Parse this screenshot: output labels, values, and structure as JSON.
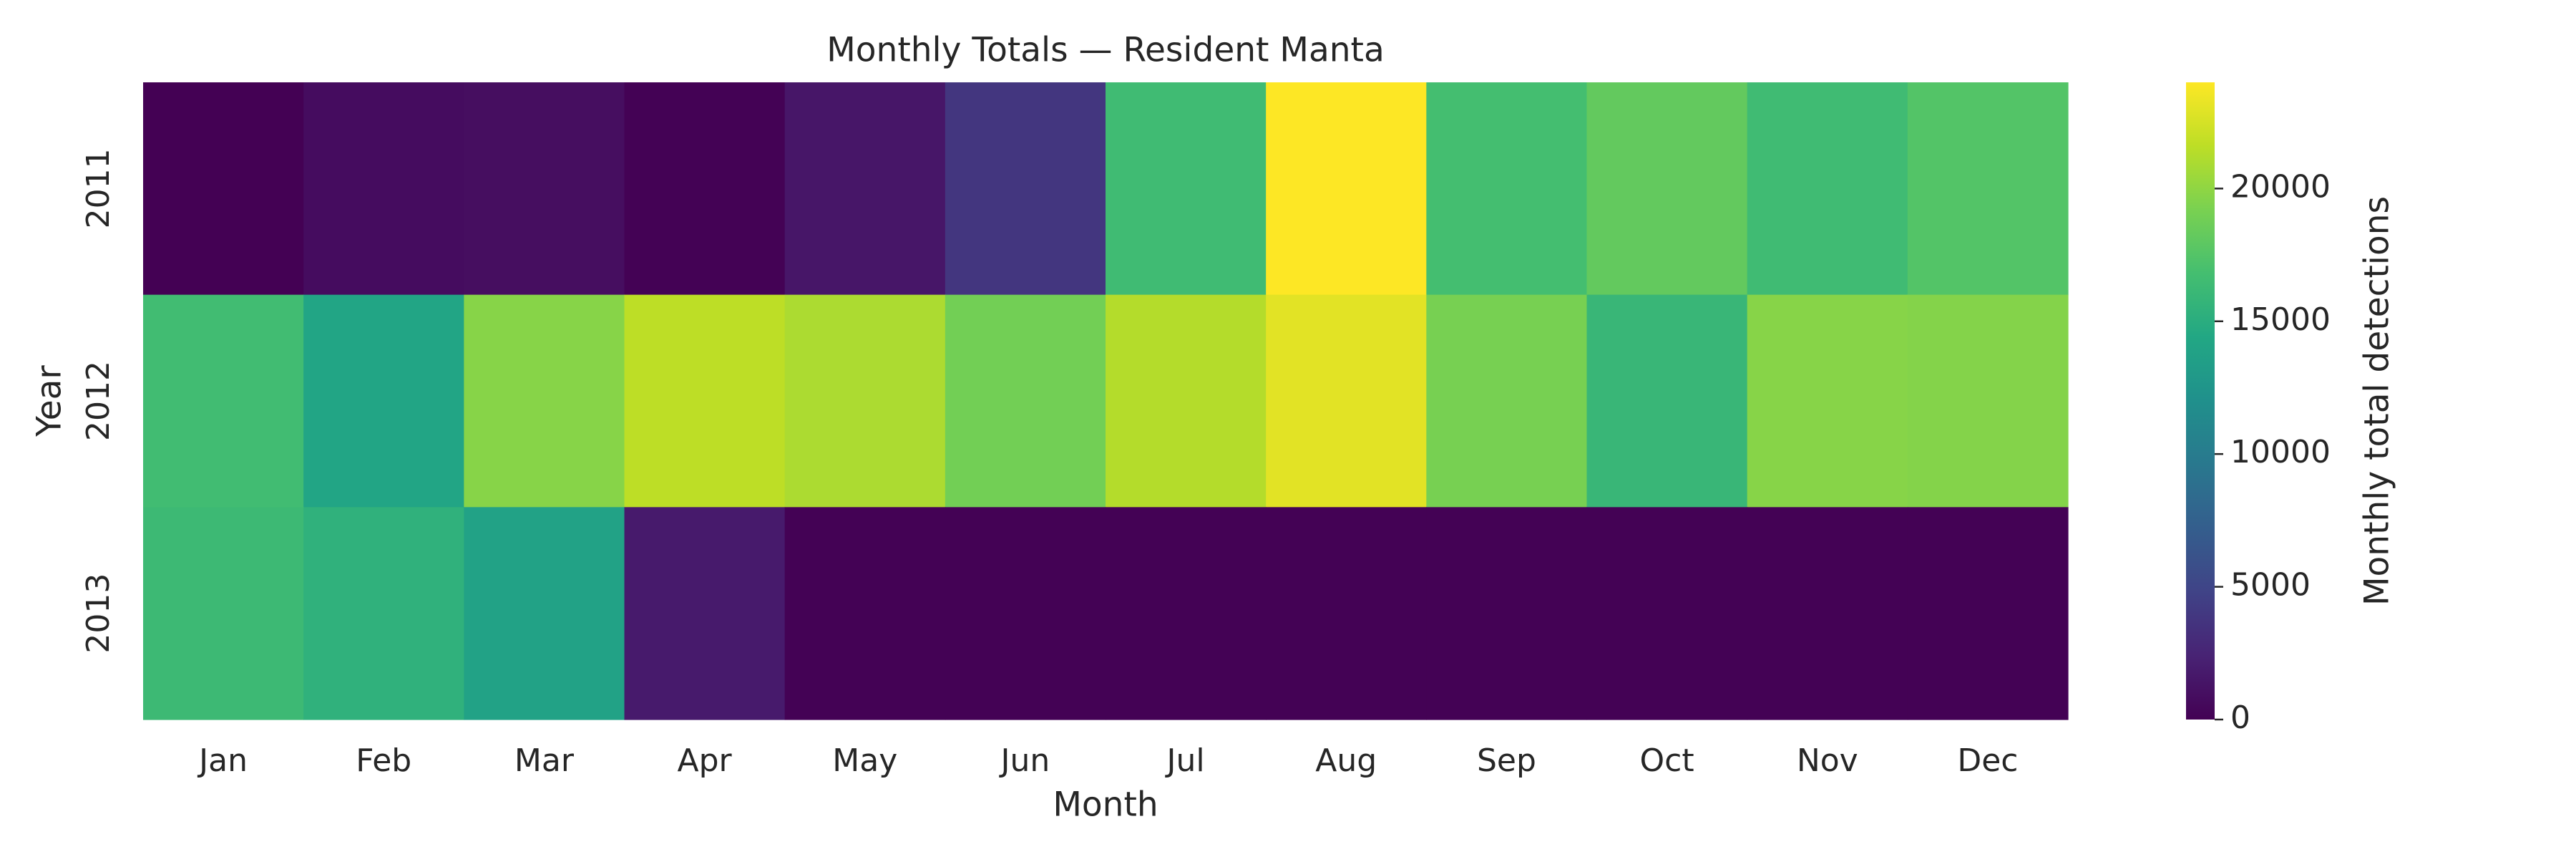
{
  "chart_data": {
    "type": "heatmap",
    "title": "Monthly Totals — Resident Manta",
    "xlabel": "Month",
    "ylabel": "Year",
    "x_categories": [
      "Jan",
      "Feb",
      "Mar",
      "Apr",
      "May",
      "Jun",
      "Jul",
      "Aug",
      "Sep",
      "Oct",
      "Nov",
      "Dec"
    ],
    "y_categories": [
      "2011",
      "2012",
      "2013"
    ],
    "values": [
      [
        0,
        800,
        900,
        100,
        1500,
        3800,
        16500,
        24000,
        16800,
        18200,
        16500,
        17500
      ],
      [
        16600,
        14200,
        19700,
        21600,
        21000,
        18900,
        21300,
        23000,
        19100,
        16000,
        19700,
        19600
      ],
      [
        16300,
        15400,
        13900,
        1800,
        50,
        50,
        50,
        50,
        50,
        50,
        50,
        50
      ]
    ],
    "colormap": "viridis",
    "colorbar": {
      "label": "Monthly total detections",
      "range": [
        0,
        24000
      ],
      "ticks": [
        0,
        5000,
        10000,
        15000,
        20000
      ]
    },
    "grid": false
  }
}
